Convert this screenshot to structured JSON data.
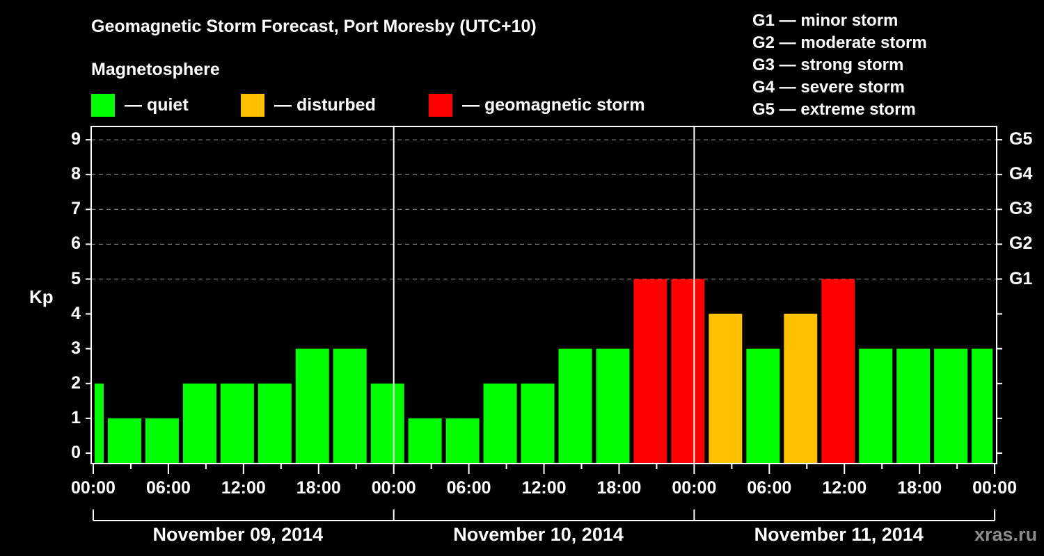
{
  "header": {
    "title": "Geomagnetic Storm Forecast, Port Moresby (UTC+10)",
    "subtitle": "Magnetosphere"
  },
  "legend": [
    {
      "label": "— quiet",
      "color": "#00ff00"
    },
    {
      "label": "— disturbed",
      "color": "#ffc000"
    },
    {
      "label": "— geomagnetic storm",
      "color": "#ff0000"
    }
  ],
  "g_scale": [
    "G1 — minor storm",
    "G2 — moderate storm",
    "G3 — strong storm",
    "G4 — severe storm",
    "G5 — extreme storm"
  ],
  "watermark": "xras.ru",
  "chart_data": {
    "type": "bar",
    "title": "Geomagnetic Storm Forecast, Port Moresby (UTC+10)",
    "subtitle": "Magnetosphere",
    "ylabel": "Kp",
    "xlabel": "",
    "ylim": [
      0,
      9
    ],
    "yticks": [
      "0",
      "1",
      "2",
      "3",
      "4",
      "5",
      "6",
      "7",
      "8",
      "9"
    ],
    "right_axis_ticks": [
      {
        "kp": 5,
        "label": "G1"
      },
      {
        "kp": 6,
        "label": "G2"
      },
      {
        "kp": 7,
        "label": "G3"
      },
      {
        "kp": 8,
        "label": "G4"
      },
      {
        "kp": 9,
        "label": "G5"
      }
    ],
    "grid": {
      "horizontal_dashed_at": [
        5,
        6,
        7,
        8,
        9
      ]
    },
    "xtick_labels": [
      "00:00",
      "06:00",
      "12:00",
      "18:00",
      "00:00",
      "06:00",
      "12:00",
      "18:00",
      "00:00",
      "06:00",
      "12:00",
      "18:00",
      "00:00"
    ],
    "day_labels": [
      "November 09, 2014",
      "November 10, 2014",
      "November 11, 2014"
    ],
    "bin_hours": 3,
    "categories": [
      "Nov 09 00:00-01:00",
      "Nov 09 01:00-04:00",
      "Nov 09 04:00-07:00",
      "Nov 09 07:00-10:00",
      "Nov 09 10:00-13:00",
      "Nov 09 13:00-16:00",
      "Nov 09 16:00-19:00",
      "Nov 09 19:00-22:00",
      "Nov 09 22:00-01:00",
      "Nov 10 01:00-04:00",
      "Nov 10 04:00-07:00",
      "Nov 10 07:00-10:00",
      "Nov 10 10:00-13:00",
      "Nov 10 13:00-16:00",
      "Nov 10 16:00-19:00",
      "Nov 10 19:00-22:00",
      "Nov 10 22:00-01:00",
      "Nov 11 01:00-04:00",
      "Nov 11 04:00-07:00",
      "Nov 11 07:00-10:00",
      "Nov 11 10:00-13:00",
      "Nov 11 13:00-16:00",
      "Nov 11 16:00-19:00",
      "Nov 11 19:00-22:00",
      "Nov 11 22:00-00:00"
    ],
    "values": [
      2,
      1,
      1,
      2,
      2,
      2,
      3,
      3,
      2,
      1,
      1,
      2,
      2,
      3,
      3,
      5,
      5,
      4,
      3,
      4,
      5,
      3,
      3,
      3,
      3
    ],
    "levels": [
      "quiet",
      "quiet",
      "quiet",
      "quiet",
      "quiet",
      "quiet",
      "quiet",
      "quiet",
      "quiet",
      "quiet",
      "quiet",
      "quiet",
      "quiet",
      "quiet",
      "quiet",
      "storm",
      "storm",
      "disturbed",
      "quiet",
      "disturbed",
      "storm",
      "quiet",
      "quiet",
      "quiet",
      "quiet"
    ],
    "colors": {
      "quiet": "#00ff00",
      "disturbed": "#ffc000",
      "storm": "#ff0000"
    },
    "legend": [
      "quiet",
      "disturbed",
      "geomagnetic storm"
    ]
  }
}
